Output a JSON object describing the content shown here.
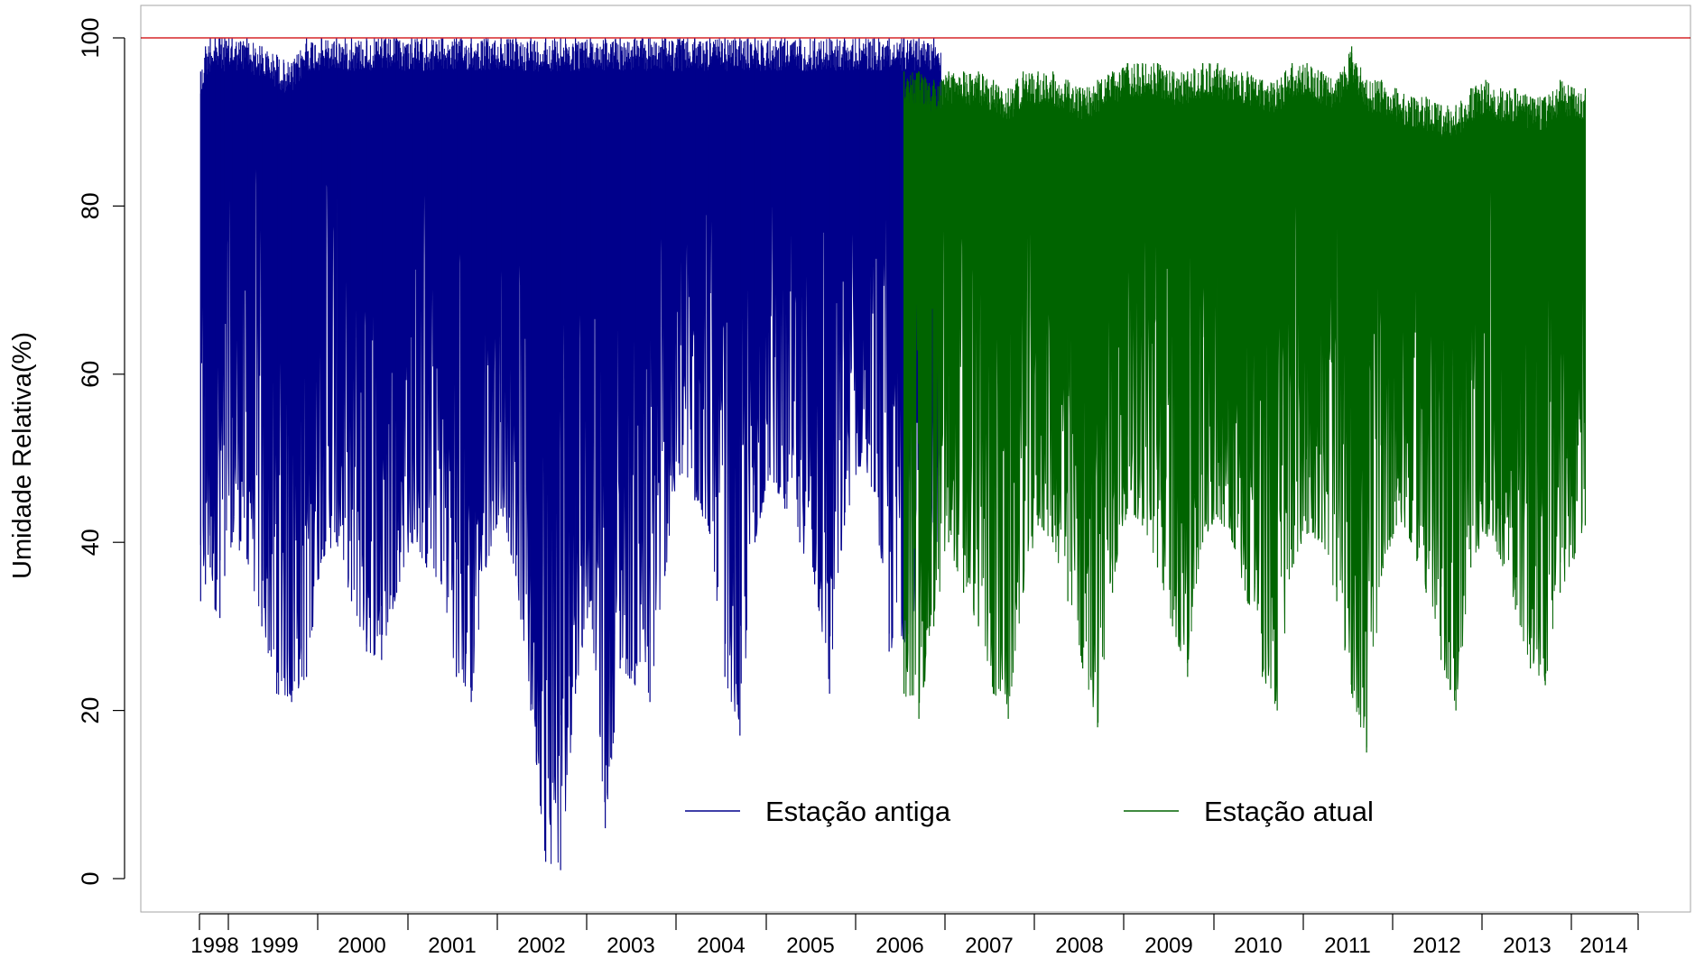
{
  "chart_data": {
    "type": "line",
    "title": "",
    "xlabel": "",
    "ylabel": "Umidade Relativa(%)",
    "ylim": [
      0,
      100
    ],
    "y_ticks": [
      0,
      20,
      40,
      60,
      80,
      100
    ],
    "x_ticks": [
      "1998",
      "1999",
      "2000",
      "2001",
      "2002",
      "2003",
      "2004",
      "2005",
      "2006",
      "2007",
      "2008",
      "2009",
      "2010",
      "2011",
      "2012",
      "2013",
      "2014"
    ],
    "reference_line": {
      "y": 100,
      "color": "#d62728"
    },
    "legend_position": "bottom-center",
    "series": [
      {
        "name": "Estação antiga",
        "color": "#00008b",
        "x_range": [
          "1998-01",
          "2006-12"
        ],
        "monthly": [
          {
            "t": "1998-01",
            "max": 96,
            "min": 33
          },
          {
            "t": "1998-03",
            "max": 99,
            "min": 35
          },
          {
            "t": "1998-05",
            "max": 100,
            "min": 37
          },
          {
            "t": "1998-07",
            "max": 100,
            "min": 32
          },
          {
            "t": "1998-09",
            "max": 100,
            "min": 31
          },
          {
            "t": "1998-11",
            "max": 100,
            "min": 36
          },
          {
            "t": "1999-01",
            "max": 100,
            "min": 40
          },
          {
            "t": "1999-03",
            "max": 100,
            "min": 38
          },
          {
            "t": "1999-05",
            "max": 99,
            "min": 30
          },
          {
            "t": "1999-07",
            "max": 98,
            "min": 22
          },
          {
            "t": "1999-09",
            "max": 97,
            "min": 21
          },
          {
            "t": "1999-11",
            "max": 100,
            "min": 24
          },
          {
            "t": "2000-01",
            "max": 100,
            "min": 38
          },
          {
            "t": "2000-03",
            "max": 100,
            "min": 40
          },
          {
            "t": "2000-05",
            "max": 100,
            "min": 33
          },
          {
            "t": "2000-07",
            "max": 100,
            "min": 27
          },
          {
            "t": "2000-09",
            "max": 100,
            "min": 26
          },
          {
            "t": "2000-11",
            "max": 100,
            "min": 34
          },
          {
            "t": "2001-01",
            "max": 100,
            "min": 40
          },
          {
            "t": "2001-03",
            "max": 100,
            "min": 37
          },
          {
            "t": "2001-05",
            "max": 100,
            "min": 35
          },
          {
            "t": "2001-07",
            "max": 100,
            "min": 24
          },
          {
            "t": "2001-09",
            "max": 100,
            "min": 21
          },
          {
            "t": "2001-11",
            "max": 100,
            "min": 37
          },
          {
            "t": "2002-01",
            "max": 100,
            "min": 44
          },
          {
            "t": "2002-03",
            "max": 100,
            "min": 36
          },
          {
            "t": "2002-05",
            "max": 100,
            "min": 20
          },
          {
            "t": "2002-07",
            "max": 100,
            "min": 2
          },
          {
            "t": "2002-09",
            "max": 100,
            "min": 1
          },
          {
            "t": "2002-11",
            "max": 100,
            "min": 22
          },
          {
            "t": "2003-01",
            "max": 100,
            "min": 33
          },
          {
            "t": "2003-03",
            "max": 100,
            "min": 6
          },
          {
            "t": "2003-05",
            "max": 100,
            "min": 25
          },
          {
            "t": "2003-07",
            "max": 100,
            "min": 23
          },
          {
            "t": "2003-09",
            "max": 100,
            "min": 21
          },
          {
            "t": "2003-11",
            "max": 100,
            "min": 36
          },
          {
            "t": "2004-01",
            "max": 100,
            "min": 48
          },
          {
            "t": "2004-03",
            "max": 100,
            "min": 45
          },
          {
            "t": "2004-05",
            "max": 100,
            "min": 41
          },
          {
            "t": "2004-07",
            "max": 100,
            "min": 24
          },
          {
            "t": "2004-09",
            "max": 100,
            "min": 17
          },
          {
            "t": "2004-11",
            "max": 100,
            "min": 40
          },
          {
            "t": "2005-01",
            "max": 100,
            "min": 48
          },
          {
            "t": "2005-03",
            "max": 100,
            "min": 44
          },
          {
            "t": "2005-05",
            "max": 100,
            "min": 40
          },
          {
            "t": "2005-07",
            "max": 100,
            "min": 35
          },
          {
            "t": "2005-09",
            "max": 100,
            "min": 22
          },
          {
            "t": "2005-11",
            "max": 100,
            "min": 42
          },
          {
            "t": "2006-01",
            "max": 100,
            "min": 49
          },
          {
            "t": "2006-03",
            "max": 100,
            "min": 46
          },
          {
            "t": "2006-05",
            "max": 100,
            "min": 27
          },
          {
            "t": "2006-07",
            "max": 100,
            "min": 28
          },
          {
            "t": "2006-09",
            "max": 100,
            "min": 32
          },
          {
            "t": "2006-11",
            "max": 100,
            "min": 40
          }
        ]
      },
      {
        "name": "Estação atual",
        "color": "#006400",
        "x_range": [
          "2006-07",
          "2014-03"
        ],
        "monthly": [
          {
            "t": "2006-07",
            "max": 96,
            "min": 22
          },
          {
            "t": "2006-09",
            "max": 96,
            "min": 19
          },
          {
            "t": "2006-11",
            "max": 95,
            "min": 30
          },
          {
            "t": "2007-01",
            "max": 96,
            "min": 40
          },
          {
            "t": "2007-03",
            "max": 96,
            "min": 34
          },
          {
            "t": "2007-05",
            "max": 96,
            "min": 30
          },
          {
            "t": "2007-07",
            "max": 95,
            "min": 22
          },
          {
            "t": "2007-09",
            "max": 94,
            "min": 19
          },
          {
            "t": "2007-11",
            "max": 96,
            "min": 34
          },
          {
            "t": "2008-01",
            "max": 96,
            "min": 42
          },
          {
            "t": "2008-03",
            "max": 96,
            "min": 40
          },
          {
            "t": "2008-05",
            "max": 95,
            "min": 33
          },
          {
            "t": "2008-07",
            "max": 94,
            "min": 25
          },
          {
            "t": "2008-09",
            "max": 95,
            "min": 18
          },
          {
            "t": "2008-11",
            "max": 96,
            "min": 34
          },
          {
            "t": "2009-01",
            "max": 97,
            "min": 44
          },
          {
            "t": "2009-03",
            "max": 97,
            "min": 42
          },
          {
            "t": "2009-05",
            "max": 97,
            "min": 37
          },
          {
            "t": "2009-07",
            "max": 96,
            "min": 30
          },
          {
            "t": "2009-09",
            "max": 96,
            "min": 24
          },
          {
            "t": "2009-11",
            "max": 97,
            "min": 40
          },
          {
            "t": "2010-01",
            "max": 97,
            "min": 43
          },
          {
            "t": "2010-03",
            "max": 96,
            "min": 40
          },
          {
            "t": "2010-05",
            "max": 96,
            "min": 33
          },
          {
            "t": "2010-07",
            "max": 95,
            "min": 24
          },
          {
            "t": "2010-09",
            "max": 95,
            "min": 20
          },
          {
            "t": "2010-11",
            "max": 97,
            "min": 37
          },
          {
            "t": "2011-01",
            "max": 97,
            "min": 41
          },
          {
            "t": "2011-03",
            "max": 96,
            "min": 40
          },
          {
            "t": "2011-05",
            "max": 95,
            "min": 33
          },
          {
            "t": "2011-07",
            "max": 99,
            "min": 22
          },
          {
            "t": "2011-09",
            "max": 95,
            "min": 15
          },
          {
            "t": "2011-11",
            "max": 95,
            "min": 36
          },
          {
            "t": "2012-01",
            "max": 94,
            "min": 42
          },
          {
            "t": "2012-03",
            "max": 93,
            "min": 40
          },
          {
            "t": "2012-05",
            "max": 93,
            "min": 34
          },
          {
            "t": "2012-07",
            "max": 92,
            "min": 26
          },
          {
            "t": "2012-09",
            "max": 92,
            "min": 20
          },
          {
            "t": "2012-11",
            "max": 94,
            "min": 37
          },
          {
            "t": "2013-01",
            "max": 95,
            "min": 41
          },
          {
            "t": "2013-03",
            "max": 94,
            "min": 38
          },
          {
            "t": "2013-05",
            "max": 94,
            "min": 32
          },
          {
            "t": "2013-07",
            "max": 93,
            "min": 25
          },
          {
            "t": "2013-09",
            "max": 93,
            "min": 23
          },
          {
            "t": "2013-11",
            "max": 95,
            "min": 34
          },
          {
            "t": "2014-01",
            "max": 94,
            "min": 38
          },
          {
            "t": "2014-03",
            "max": 94,
            "min": 42
          }
        ]
      }
    ]
  }
}
